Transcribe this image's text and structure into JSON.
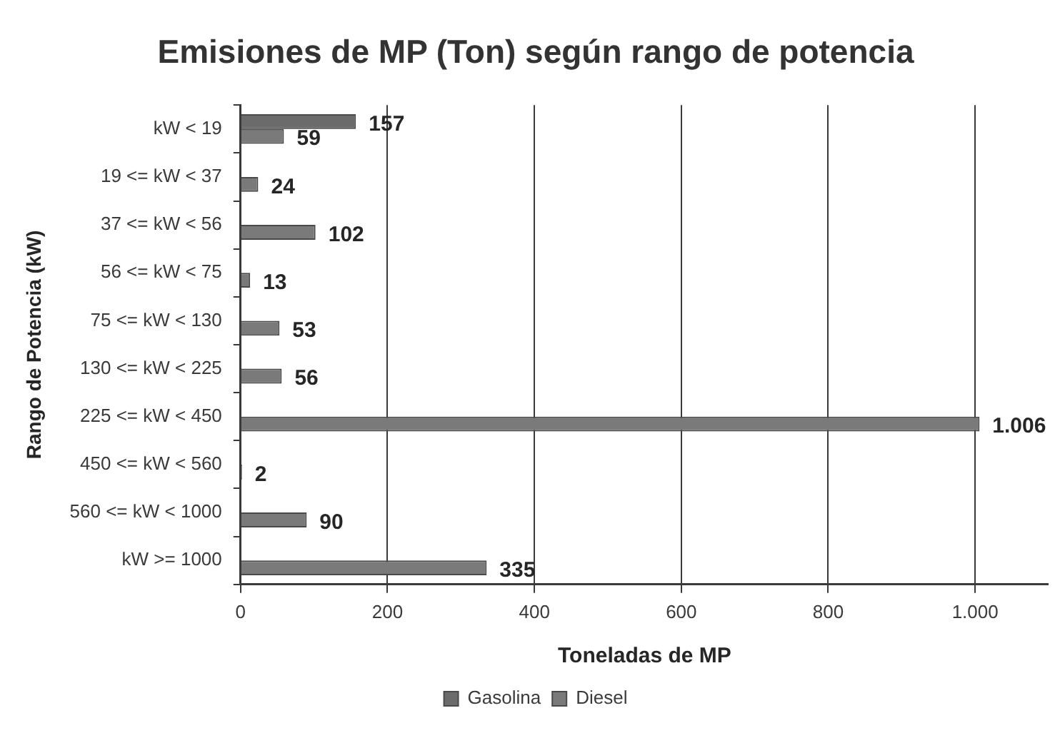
{
  "chart_data": {
    "type": "bar",
    "orientation": "horizontal",
    "title": "Emisiones de MP (Ton) según rango de potencia",
    "xlabel": "Toneladas de MP",
    "ylabel": "Rango de Potencia (kW)",
    "categories": [
      "kW < 19",
      "19 <= kW < 37",
      "37 <= kW < 56",
      "56 <= kW < 75",
      "75 <= kW < 130",
      "130 <= kW < 225",
      "225 <= kW < 450",
      "450 <= kW < 560",
      "560 <= kW < 1000",
      "kW >= 1000"
    ],
    "series": [
      {
        "name": "Gasolina",
        "color": "#6b6b6b",
        "values": [
          157,
          null,
          null,
          null,
          null,
          null,
          null,
          null,
          null,
          null
        ],
        "value_labels": [
          "157",
          null,
          null,
          null,
          null,
          null,
          null,
          null,
          null,
          null
        ]
      },
      {
        "name": "Diesel",
        "color": "#7a7a7a",
        "values": [
          59,
          24,
          102,
          13,
          53,
          56,
          1006,
          2,
          90,
          335
        ],
        "value_labels": [
          "59",
          "24",
          "102",
          "13",
          "53",
          "56",
          "1.006",
          "2",
          "90",
          "335"
        ]
      }
    ],
    "xlim": [
      0,
      1100
    ],
    "xticks": [
      0,
      200,
      400,
      600,
      800,
      {
        "value": 1000,
        "label": "1.000"
      }
    ],
    "grid": "x",
    "legend": "bottom"
  }
}
